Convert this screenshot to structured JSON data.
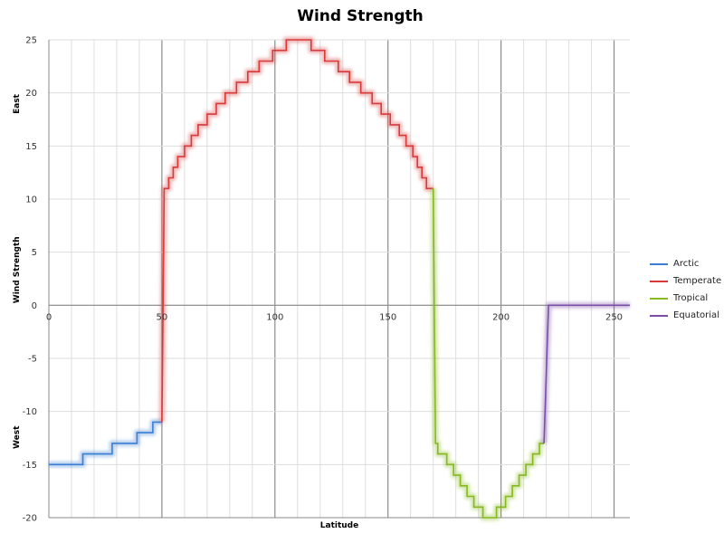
{
  "chart_data": {
    "type": "line",
    "title": "Wind Strength",
    "xlabel": "Latitude",
    "ylabel_parts": [
      "West",
      "Wind Strength",
      "East"
    ],
    "xlim": [
      0,
      257
    ],
    "ylim": [
      -20,
      25
    ],
    "x_ticks": [
      0,
      50,
      100,
      150,
      200,
      250
    ],
    "y_ticks": [
      -20,
      -15,
      -10,
      -5,
      0,
      5,
      10,
      15,
      20,
      25
    ],
    "grid": true,
    "legend_position": "right",
    "series": [
      {
        "name": "Arctic",
        "color": "#3a7fd4",
        "points": [
          [
            0,
            -15
          ],
          [
            15,
            -15
          ],
          [
            15,
            -14
          ],
          [
            28,
            -14
          ],
          [
            28,
            -13
          ],
          [
            39,
            -13
          ],
          [
            39,
            -12
          ],
          [
            46,
            -12
          ],
          [
            46,
            -11
          ],
          [
            50,
            -11
          ]
        ]
      },
      {
        "name": "Temperate",
        "color": "#d83a3a",
        "points": [
          [
            50,
            -11
          ],
          [
            51,
            11
          ],
          [
            53,
            11
          ],
          [
            53,
            12
          ],
          [
            55,
            12
          ],
          [
            55,
            13
          ],
          [
            57,
            13
          ],
          [
            57,
            14
          ],
          [
            60,
            14
          ],
          [
            60,
            15
          ],
          [
            63,
            15
          ],
          [
            63,
            16
          ],
          [
            66,
            16
          ],
          [
            66,
            17
          ],
          [
            70,
            17
          ],
          [
            70,
            18
          ],
          [
            74,
            18
          ],
          [
            74,
            19
          ],
          [
            78,
            19
          ],
          [
            78,
            20
          ],
          [
            83,
            20
          ],
          [
            83,
            21
          ],
          [
            88,
            21
          ],
          [
            88,
            22
          ],
          [
            93,
            22
          ],
          [
            93,
            23
          ],
          [
            99,
            23
          ],
          [
            99,
            24
          ],
          [
            105,
            24
          ],
          [
            105,
            25
          ],
          [
            116,
            25
          ],
          [
            116,
            24
          ],
          [
            122,
            24
          ],
          [
            122,
            23
          ],
          [
            128,
            23
          ],
          [
            128,
            22
          ],
          [
            133,
            22
          ],
          [
            133,
            21
          ],
          [
            138,
            21
          ],
          [
            138,
            20
          ],
          [
            143,
            20
          ],
          [
            143,
            19
          ],
          [
            147,
            19
          ],
          [
            147,
            18
          ],
          [
            151,
            18
          ],
          [
            151,
            17
          ],
          [
            155,
            17
          ],
          [
            155,
            16
          ],
          [
            158,
            16
          ],
          [
            158,
            15
          ],
          [
            161,
            15
          ],
          [
            161,
            14
          ],
          [
            163,
            14
          ],
          [
            163,
            13
          ],
          [
            165,
            13
          ],
          [
            165,
            12
          ],
          [
            167,
            12
          ],
          [
            167,
            11
          ],
          [
            170,
            11
          ]
        ]
      },
      {
        "name": "Tropical",
        "color": "#86b91f",
        "points": [
          [
            170,
            11
          ],
          [
            171,
            -13
          ],
          [
            172,
            -13
          ],
          [
            172,
            -14
          ],
          [
            176,
            -14
          ],
          [
            176,
            -15
          ],
          [
            179,
            -15
          ],
          [
            179,
            -16
          ],
          [
            182,
            -16
          ],
          [
            182,
            -17
          ],
          [
            185,
            -17
          ],
          [
            185,
            -18
          ],
          [
            188,
            -18
          ],
          [
            188,
            -19
          ],
          [
            192,
            -19
          ],
          [
            192,
            -20
          ],
          [
            198,
            -20
          ],
          [
            198,
            -19
          ],
          [
            202,
            -19
          ],
          [
            202,
            -18
          ],
          [
            205,
            -18
          ],
          [
            205,
            -17
          ],
          [
            208,
            -17
          ],
          [
            208,
            -16
          ],
          [
            211,
            -16
          ],
          [
            211,
            -15
          ],
          [
            214,
            -15
          ],
          [
            214,
            -14
          ],
          [
            217,
            -14
          ],
          [
            217,
            -13
          ],
          [
            219,
            -13
          ]
        ]
      },
      {
        "name": "Equatorial",
        "color": "#7a4fa8",
        "points": [
          [
            219,
            -13
          ],
          [
            221,
            0
          ],
          [
            257,
            0
          ]
        ]
      }
    ]
  }
}
